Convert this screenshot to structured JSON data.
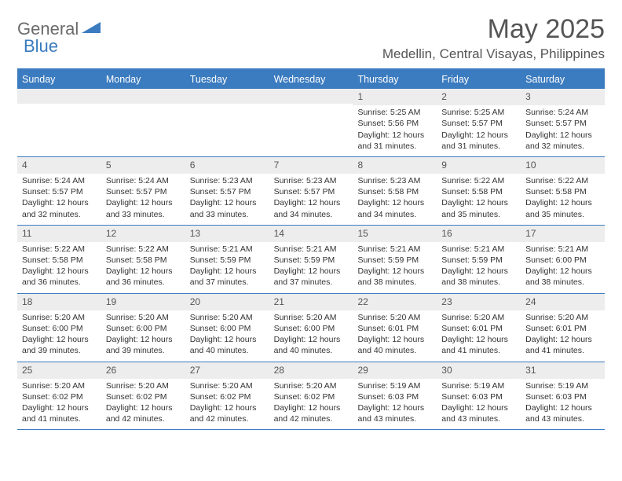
{
  "logo": {
    "general": "General",
    "blue": "Blue",
    "icon_color": "#3b7bbf"
  },
  "title": "May 2025",
  "location": "Medellin, Central Visayas, Philippines",
  "day_names": [
    "Sunday",
    "Monday",
    "Tuesday",
    "Wednesday",
    "Thursday",
    "Friday",
    "Saturday"
  ],
  "colors": {
    "header_bg": "#3b7bbf",
    "header_text": "#ffffff",
    "number_bg": "#ededed",
    "border": "#3b7bbf",
    "body_text": "#333333",
    "title_text": "#555555"
  },
  "typography": {
    "title_fontsize": 34,
    "location_fontsize": 17,
    "dayheader_fontsize": 12.5,
    "cell_fontsize": 10.5
  },
  "weeks": [
    [
      {
        "n": "",
        "sr": "",
        "ss": "",
        "d1": "",
        "d2": ""
      },
      {
        "n": "",
        "sr": "",
        "ss": "",
        "d1": "",
        "d2": ""
      },
      {
        "n": "",
        "sr": "",
        "ss": "",
        "d1": "",
        "d2": ""
      },
      {
        "n": "",
        "sr": "",
        "ss": "",
        "d1": "",
        "d2": ""
      },
      {
        "n": "1",
        "sr": "Sunrise: 5:25 AM",
        "ss": "Sunset: 5:56 PM",
        "d1": "Daylight: 12 hours",
        "d2": "and 31 minutes."
      },
      {
        "n": "2",
        "sr": "Sunrise: 5:25 AM",
        "ss": "Sunset: 5:57 PM",
        "d1": "Daylight: 12 hours",
        "d2": "and 31 minutes."
      },
      {
        "n": "3",
        "sr": "Sunrise: 5:24 AM",
        "ss": "Sunset: 5:57 PM",
        "d1": "Daylight: 12 hours",
        "d2": "and 32 minutes."
      }
    ],
    [
      {
        "n": "4",
        "sr": "Sunrise: 5:24 AM",
        "ss": "Sunset: 5:57 PM",
        "d1": "Daylight: 12 hours",
        "d2": "and 32 minutes."
      },
      {
        "n": "5",
        "sr": "Sunrise: 5:24 AM",
        "ss": "Sunset: 5:57 PM",
        "d1": "Daylight: 12 hours",
        "d2": "and 33 minutes."
      },
      {
        "n": "6",
        "sr": "Sunrise: 5:23 AM",
        "ss": "Sunset: 5:57 PM",
        "d1": "Daylight: 12 hours",
        "d2": "and 33 minutes."
      },
      {
        "n": "7",
        "sr": "Sunrise: 5:23 AM",
        "ss": "Sunset: 5:57 PM",
        "d1": "Daylight: 12 hours",
        "d2": "and 34 minutes."
      },
      {
        "n": "8",
        "sr": "Sunrise: 5:23 AM",
        "ss": "Sunset: 5:58 PM",
        "d1": "Daylight: 12 hours",
        "d2": "and 34 minutes."
      },
      {
        "n": "9",
        "sr": "Sunrise: 5:22 AM",
        "ss": "Sunset: 5:58 PM",
        "d1": "Daylight: 12 hours",
        "d2": "and 35 minutes."
      },
      {
        "n": "10",
        "sr": "Sunrise: 5:22 AM",
        "ss": "Sunset: 5:58 PM",
        "d1": "Daylight: 12 hours",
        "d2": "and 35 minutes."
      }
    ],
    [
      {
        "n": "11",
        "sr": "Sunrise: 5:22 AM",
        "ss": "Sunset: 5:58 PM",
        "d1": "Daylight: 12 hours",
        "d2": "and 36 minutes."
      },
      {
        "n": "12",
        "sr": "Sunrise: 5:22 AM",
        "ss": "Sunset: 5:58 PM",
        "d1": "Daylight: 12 hours",
        "d2": "and 36 minutes."
      },
      {
        "n": "13",
        "sr": "Sunrise: 5:21 AM",
        "ss": "Sunset: 5:59 PM",
        "d1": "Daylight: 12 hours",
        "d2": "and 37 minutes."
      },
      {
        "n": "14",
        "sr": "Sunrise: 5:21 AM",
        "ss": "Sunset: 5:59 PM",
        "d1": "Daylight: 12 hours",
        "d2": "and 37 minutes."
      },
      {
        "n": "15",
        "sr": "Sunrise: 5:21 AM",
        "ss": "Sunset: 5:59 PM",
        "d1": "Daylight: 12 hours",
        "d2": "and 38 minutes."
      },
      {
        "n": "16",
        "sr": "Sunrise: 5:21 AM",
        "ss": "Sunset: 5:59 PM",
        "d1": "Daylight: 12 hours",
        "d2": "and 38 minutes."
      },
      {
        "n": "17",
        "sr": "Sunrise: 5:21 AM",
        "ss": "Sunset: 6:00 PM",
        "d1": "Daylight: 12 hours",
        "d2": "and 38 minutes."
      }
    ],
    [
      {
        "n": "18",
        "sr": "Sunrise: 5:20 AM",
        "ss": "Sunset: 6:00 PM",
        "d1": "Daylight: 12 hours",
        "d2": "and 39 minutes."
      },
      {
        "n": "19",
        "sr": "Sunrise: 5:20 AM",
        "ss": "Sunset: 6:00 PM",
        "d1": "Daylight: 12 hours",
        "d2": "and 39 minutes."
      },
      {
        "n": "20",
        "sr": "Sunrise: 5:20 AM",
        "ss": "Sunset: 6:00 PM",
        "d1": "Daylight: 12 hours",
        "d2": "and 40 minutes."
      },
      {
        "n": "21",
        "sr": "Sunrise: 5:20 AM",
        "ss": "Sunset: 6:00 PM",
        "d1": "Daylight: 12 hours",
        "d2": "and 40 minutes."
      },
      {
        "n": "22",
        "sr": "Sunrise: 5:20 AM",
        "ss": "Sunset: 6:01 PM",
        "d1": "Daylight: 12 hours",
        "d2": "and 40 minutes."
      },
      {
        "n": "23",
        "sr": "Sunrise: 5:20 AM",
        "ss": "Sunset: 6:01 PM",
        "d1": "Daylight: 12 hours",
        "d2": "and 41 minutes."
      },
      {
        "n": "24",
        "sr": "Sunrise: 5:20 AM",
        "ss": "Sunset: 6:01 PM",
        "d1": "Daylight: 12 hours",
        "d2": "and 41 minutes."
      }
    ],
    [
      {
        "n": "25",
        "sr": "Sunrise: 5:20 AM",
        "ss": "Sunset: 6:02 PM",
        "d1": "Daylight: 12 hours",
        "d2": "and 41 minutes."
      },
      {
        "n": "26",
        "sr": "Sunrise: 5:20 AM",
        "ss": "Sunset: 6:02 PM",
        "d1": "Daylight: 12 hours",
        "d2": "and 42 minutes."
      },
      {
        "n": "27",
        "sr": "Sunrise: 5:20 AM",
        "ss": "Sunset: 6:02 PM",
        "d1": "Daylight: 12 hours",
        "d2": "and 42 minutes."
      },
      {
        "n": "28",
        "sr": "Sunrise: 5:20 AM",
        "ss": "Sunset: 6:02 PM",
        "d1": "Daylight: 12 hours",
        "d2": "and 42 minutes."
      },
      {
        "n": "29",
        "sr": "Sunrise: 5:19 AM",
        "ss": "Sunset: 6:03 PM",
        "d1": "Daylight: 12 hours",
        "d2": "and 43 minutes."
      },
      {
        "n": "30",
        "sr": "Sunrise: 5:19 AM",
        "ss": "Sunset: 6:03 PM",
        "d1": "Daylight: 12 hours",
        "d2": "and 43 minutes."
      },
      {
        "n": "31",
        "sr": "Sunrise: 5:19 AM",
        "ss": "Sunset: 6:03 PM",
        "d1": "Daylight: 12 hours",
        "d2": "and 43 minutes."
      }
    ]
  ]
}
